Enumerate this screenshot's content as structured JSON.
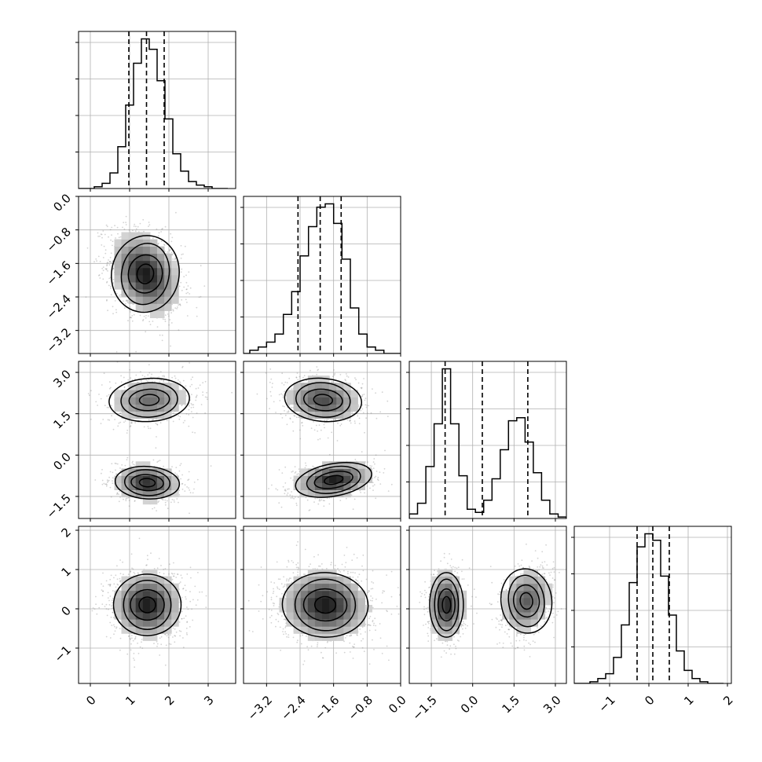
{
  "chart_data": {
    "type": "corner",
    "parameters": 4,
    "grid": true,
    "ticks": {
      "x": [
        [
          0,
          1,
          2,
          3
        ],
        [
          -3.2,
          -2.4,
          -1.6,
          -0.8,
          0.0
        ],
        [
          -1.5,
          0.0,
          1.5,
          3.0
        ],
        [
          -1,
          0,
          1,
          2
        ]
      ],
      "y": {
        "1": [
          0.0,
          -0.8,
          -1.6,
          -2.4,
          -3.2
        ],
        "2": [
          3.0,
          1.5,
          0.0,
          -1.5
        ],
        "3": [
          2,
          1,
          0,
          -1
        ]
      }
    },
    "tick_labels": {
      "x": [
        [
          "0",
          "1",
          "2",
          "3"
        ],
        [
          "−3.2",
          "−2.4",
          "−1.6",
          "−0.8",
          "0.0"
        ],
        [
          "−1.5",
          "0.0",
          "1.5",
          "3.0"
        ],
        [
          "−1",
          "0",
          "1",
          "2"
        ]
      ],
      "y": {
        "1": [
          "0.0",
          "−0.8",
          "−1.6",
          "−2.4",
          "−3.2"
        ],
        "2": [
          "3.0",
          "1.5",
          "0.0",
          "−1.5"
        ],
        "3": [
          "2",
          "1",
          "0",
          "−1"
        ]
      }
    },
    "ranges": [
      [
        -0.3,
        3.7
      ],
      [
        -3.75,
        0.0
      ],
      [
        -2.3,
        3.4
      ],
      [
        -1.9,
        2.1
      ]
    ],
    "marginals": [
      {
        "param": 0,
        "quantiles": [
          0.98,
          1.43,
          1.88
        ],
        "bins": [
          -0.3,
          -0.1,
          0.1,
          0.3,
          0.5,
          0.7,
          0.9,
          1.1,
          1.3,
          1.5,
          1.7,
          1.9,
          2.1,
          2.3,
          2.5,
          2.7,
          2.9,
          3.1,
          3.3,
          3.5
        ],
        "counts": [
          0,
          0,
          1,
          3,
          9,
          24,
          48,
          72,
          86,
          80,
          62,
          40,
          20,
          10,
          4,
          2,
          1,
          0,
          0
        ]
      },
      {
        "param": 1,
        "quantiles": [
          -2.45,
          -1.92,
          -1.42
        ],
        "bins": [
          -3.8,
          -3.6,
          -3.4,
          -3.2,
          -3.0,
          -2.8,
          -2.6,
          -2.4,
          -2.2,
          -2.0,
          -1.8,
          -1.6,
          -1.4,
          -1.2,
          -1.0,
          -0.8,
          -0.6,
          -0.4,
          -0.2,
          0.0
        ],
        "counts": [
          0,
          2,
          4,
          7,
          12,
          24,
          38,
          60,
          78,
          90,
          92,
          80,
          58,
          28,
          12,
          4,
          2,
          0,
          0
        ]
      },
      {
        "param": 2,
        "quantiles": [
          -1.0,
          0.35,
          2.0
        ],
        "bins": [
          -2.3,
          -2.0,
          -1.7,
          -1.4,
          -1.1,
          -0.8,
          -0.5,
          -0.2,
          0.1,
          0.4,
          0.7,
          1.0,
          1.3,
          1.6,
          1.9,
          2.2,
          2.5,
          2.8,
          3.1,
          3.4
        ],
        "counts": [
          3,
          10,
          34,
          62,
          98,
          62,
          28,
          6,
          4,
          12,
          26,
          45,
          64,
          66,
          50,
          30,
          12,
          3,
          1
        ]
      },
      {
        "param": 3,
        "quantiles": [
          -0.3,
          0.1,
          0.52
        ],
        "bins": [
          -1.9,
          -1.7,
          -1.5,
          -1.3,
          -1.1,
          -0.9,
          -0.7,
          -0.5,
          -0.3,
          -0.1,
          0.1,
          0.3,
          0.5,
          0.7,
          0.9,
          1.1,
          1.3,
          1.5,
          1.7,
          1.9
        ],
        "counts": [
          0,
          0,
          1,
          3,
          6,
          16,
          36,
          62,
          84,
          92,
          88,
          66,
          42,
          20,
          8,
          3,
          1,
          0,
          0
        ]
      }
    ],
    "joints": [
      {
        "x": 0,
        "y": 1,
        "centers": [
          {
            "x": 1.4,
            "y": -1.85,
            "sx": 0.42,
            "sy": 0.47,
            "rho": -0.3,
            "w": 1.0
          }
        ]
      },
      {
        "x": 0,
        "y": 2,
        "centers": [
          {
            "x": 1.5,
            "y": 2.0,
            "sx": 0.5,
            "sy": 0.4,
            "rho": 0.1,
            "w": 0.5
          },
          {
            "x": 1.45,
            "y": -1.0,
            "sx": 0.4,
            "sy": 0.3,
            "rho": -0.1,
            "w": 0.5
          }
        ]
      },
      {
        "x": 1,
        "y": 2,
        "centers": [
          {
            "x": -1.85,
            "y": 2.0,
            "sx": 0.45,
            "sy": 0.4,
            "rho": -0.15,
            "w": 0.5
          },
          {
            "x": -1.6,
            "y": -0.9,
            "sx": 0.45,
            "sy": 0.3,
            "rho": 0.3,
            "w": 0.5
          }
        ]
      },
      {
        "x": 0,
        "y": 3,
        "centers": [
          {
            "x": 1.45,
            "y": 0.1,
            "sx": 0.42,
            "sy": 0.4,
            "rho": 0.0,
            "w": 1.0
          }
        ]
      },
      {
        "x": 1,
        "y": 3,
        "centers": [
          {
            "x": -1.8,
            "y": 0.1,
            "sx": 0.5,
            "sy": 0.42,
            "rho": -0.05,
            "w": 1.0
          }
        ]
      },
      {
        "x": 2,
        "y": 3,
        "centers": [
          {
            "x": -0.95,
            "y": 0.1,
            "sx": 0.3,
            "sy": 0.42,
            "rho": 0.0,
            "w": 0.5
          },
          {
            "x": 1.95,
            "y": 0.2,
            "sx": 0.45,
            "sy": 0.42,
            "rho": 0.2,
            "w": 0.5
          }
        ]
      }
    ],
    "colors": {
      "frame": "#000000",
      "grid": "#b0b0b0",
      "points": "#808080",
      "contour": "#000000"
    }
  }
}
